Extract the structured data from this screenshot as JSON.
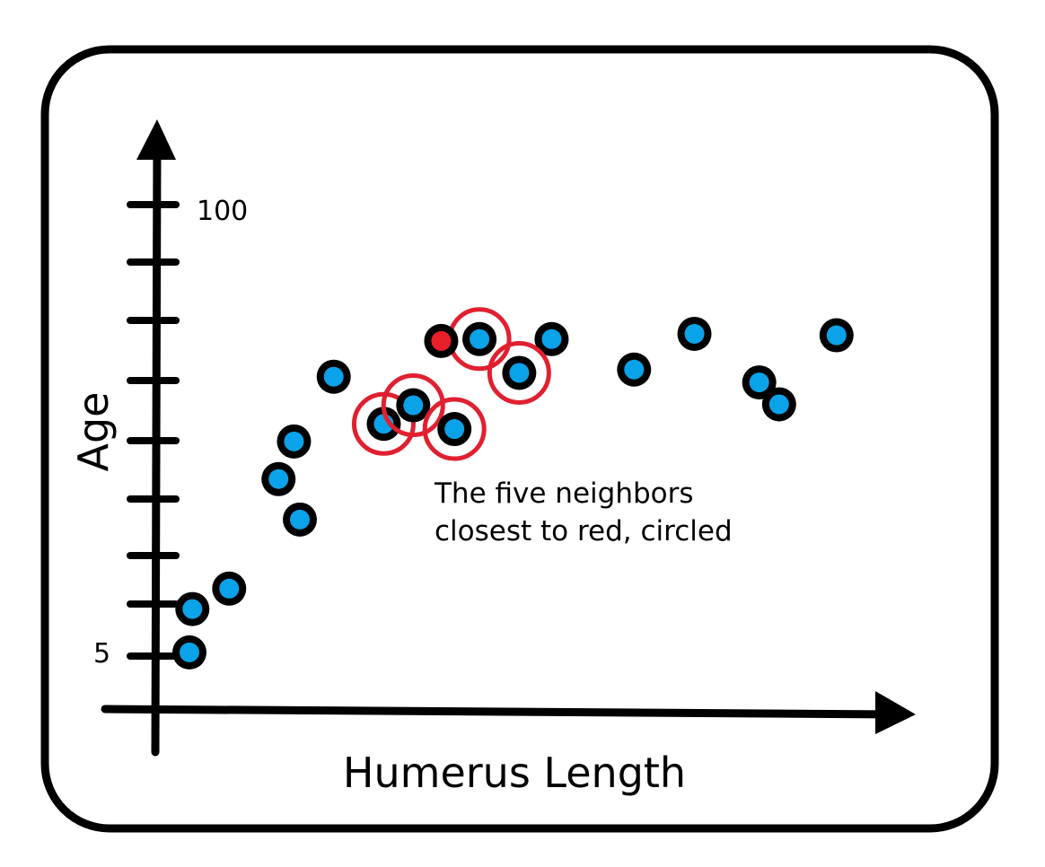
{
  "chart_data": {
    "type": "scatter",
    "xlabel": "Humerus Length",
    "ylabel": "Age",
    "y_tick_labels": [
      {
        "text": "100",
        "value": 100
      },
      {
        "text": "5",
        "value": 5
      }
    ],
    "ylim": [
      -6,
      124
    ],
    "xlim": [
      0,
      1
    ],
    "annotation": "The five neighbors\nclosest to red, circled",
    "colors": {
      "point": "#0aa2e8",
      "query": "#e8202a",
      "circle": "#e02030",
      "outline": "#000000"
    },
    "points": [
      {
        "x": 0.05,
        "y": 5.4
      },
      {
        "x": 0.054,
        "y": 14.5
      },
      {
        "x": 0.104,
        "y": 18.8
      },
      {
        "x": 0.171,
        "y": 41.8
      },
      {
        "x": 0.2,
        "y": 33.3
      },
      {
        "x": 0.192,
        "y": 49.7
      },
      {
        "x": 0.246,
        "y": 63.3
      },
      {
        "x": 0.542,
        "y": 71.2
      },
      {
        "x": 0.654,
        "y": 64.8
      },
      {
        "x": 0.736,
        "y": 72.3
      },
      {
        "x": 0.824,
        "y": 62.1
      },
      {
        "x": 0.851,
        "y": 57.5
      },
      {
        "x": 0.929,
        "y": 72.0
      }
    ],
    "query_point": {
      "x": 0.392,
      "y": 70.8
    },
    "neighbors": [
      {
        "x": 0.314,
        "y": 53.4
      },
      {
        "x": 0.354,
        "y": 57.3
      },
      {
        "x": 0.41,
        "y": 52.3
      },
      {
        "x": 0.444,
        "y": 71.2
      },
      {
        "x": 0.498,
        "y": 64.1
      }
    ]
  }
}
